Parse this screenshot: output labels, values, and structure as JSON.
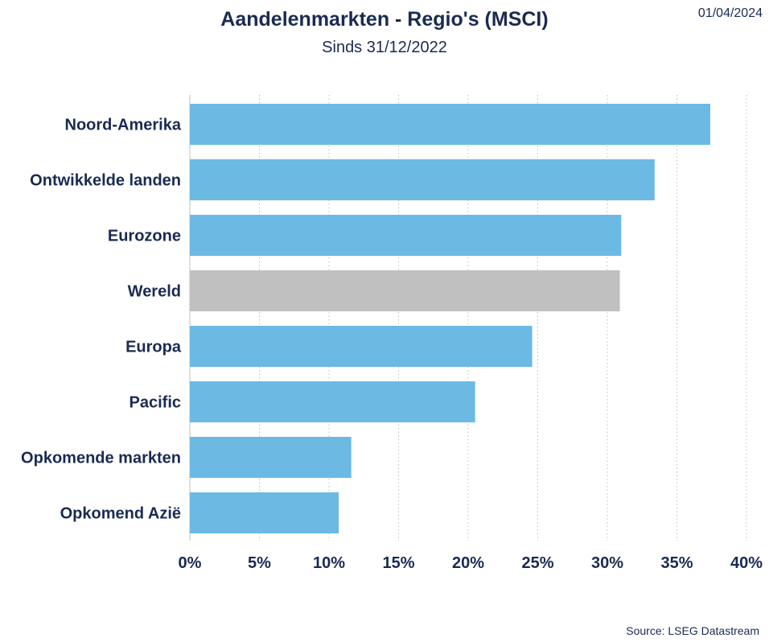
{
  "header": {
    "title": "Aandelenmarkten - Regio's (MSCI)",
    "subtitle": "Sinds 31/12/2022",
    "date": "01/04/2024"
  },
  "footer": {
    "source": "Source: LSEG Datastream"
  },
  "chart_data": {
    "type": "bar",
    "orientation": "horizontal",
    "categories": [
      "Noord-Amerika",
      "Ontwikkelde landen",
      "Eurozone",
      "Wereld",
      "Europa",
      "Pacific",
      "Opkomende markten",
      "Opkomend Azië"
    ],
    "values": [
      37.4,
      33.4,
      31.0,
      30.9,
      24.6,
      20.5,
      11.6,
      10.7
    ],
    "colors": [
      "#6cb9e4",
      "#6cb9e4",
      "#6cb9e4",
      "#c0c0c0",
      "#6cb9e4",
      "#6cb9e4",
      "#6cb9e4",
      "#6cb9e4"
    ],
    "xlim": [
      0,
      40
    ],
    "xticks": [
      0,
      5,
      10,
      15,
      20,
      25,
      30,
      35,
      40
    ],
    "tick_format": "percent",
    "grid": "vertical dotted",
    "xlabel": "",
    "ylabel": ""
  }
}
